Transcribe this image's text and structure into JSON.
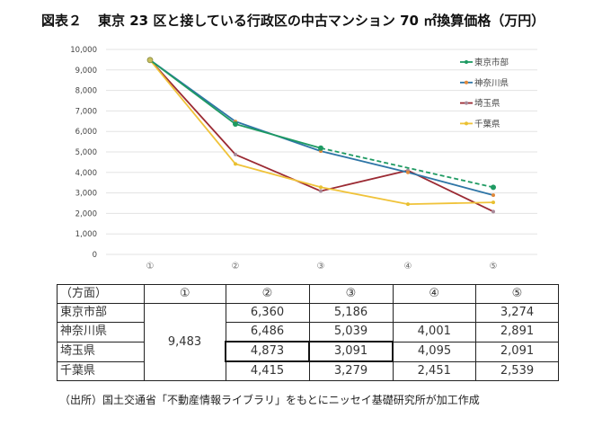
{
  "title": {
    "figure_label": "図表２",
    "text": "東京 23 区と接している行政区の中古マンション 70 ㎡換算価格（万円）"
  },
  "chart_data": {
    "type": "line",
    "title": "東京 23 区と接している行政区の中古マンション 70 ㎡換算価格（万円）",
    "xlabel": "",
    "ylabel": "",
    "categories": [
      "①",
      "②",
      "③",
      "④",
      "⑤"
    ],
    "ylim": [
      0,
      10000
    ],
    "yticks": [
      0,
      1000,
      2000,
      3000,
      4000,
      5000,
      6000,
      7000,
      8000,
      9000,
      10000
    ],
    "ytick_labels": [
      "0",
      "1,000",
      "2,000",
      "3,000",
      "4,000",
      "5,000",
      "6,000",
      "7,000",
      "8,000",
      "9,000",
      "10,000"
    ],
    "grid": true,
    "legend_position": "top-right",
    "series": [
      {
        "name": "東京市部",
        "color": "#1e9a62",
        "marker_color": "#1e9a62",
        "values": [
          9483,
          6360,
          5186,
          null,
          3274
        ],
        "gap_style": "dashed"
      },
      {
        "name": "神奈川県",
        "color": "#2e75a6",
        "marker_color": "#e0883a",
        "values": [
          9483,
          6486,
          5039,
          4001,
          2891
        ]
      },
      {
        "name": "埼玉県",
        "color": "#9b2a33",
        "marker_color": "#a88a9a",
        "values": [
          9483,
          4873,
          3091,
          4095,
          2091
        ]
      },
      {
        "name": "千葉県",
        "color": "#f0c33a",
        "marker_color": "#e8c030",
        "values": [
          9483,
          4415,
          3279,
          2451,
          2539
        ]
      }
    ]
  },
  "table": {
    "header": [
      "（方面）",
      "①",
      "②",
      "③",
      "④",
      "⑤"
    ],
    "shared_value": "9,483",
    "rows": [
      {
        "label": "東京市部",
        "cells": [
          "6,360",
          "5,186",
          "",
          "3,274"
        ]
      },
      {
        "label": "神奈川県",
        "cells": [
          "6,486",
          "5,039",
          "4,001",
          "2,891"
        ]
      },
      {
        "label": "埼玉県",
        "cells": [
          "4,873",
          "3,091",
          "4,095",
          "2,091"
        ]
      },
      {
        "label": "千葉県",
        "cells": [
          "4,415",
          "3,279",
          "2,451",
          "2,539"
        ]
      }
    ]
  },
  "source": "（出所）国土交通省「不動産情報ライブラリ」をもとにニッセイ基礎研究所が加工作成"
}
